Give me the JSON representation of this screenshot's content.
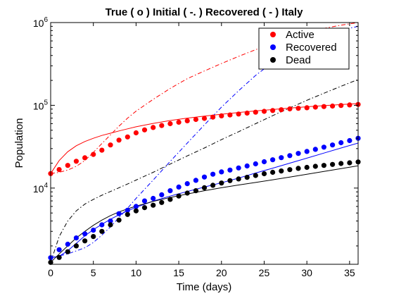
{
  "chart_data": {
    "type": "line",
    "title": "True ( o ) Initial ( -. ) Recovered ( - ) Italy",
    "xlabel": "Time (days)",
    "ylabel": "Population",
    "xlim": [
      0,
      36
    ],
    "ylim": [
      1200,
      1000000
    ],
    "yscale": "log",
    "x_ticks": [
      0,
      5,
      10,
      15,
      20,
      25,
      30,
      35
    ],
    "y_ticks": [
      {
        "value": 10000,
        "base": "10",
        "exponent": "4"
      },
      {
        "value": 100000,
        "base": "10",
        "exponent": "5"
      },
      {
        "value": 1000000,
        "base": "10",
        "exponent": "6"
      }
    ],
    "legend_position": "top-right",
    "grid": false,
    "legend": [
      {
        "label": "Active",
        "color": "#ff0000"
      },
      {
        "label": "Recovered",
        "color": "#0000ff"
      },
      {
        "label": "Dead",
        "color": "#000000"
      }
    ],
    "series": [
      {
        "name": "Active",
        "color": "#ff0000",
        "true_points": {
          "x": [
            0,
            1,
            2,
            3,
            4,
            5,
            6,
            7,
            8,
            9,
            10,
            11,
            12,
            13,
            14,
            15,
            16,
            17,
            18,
            19,
            20,
            21,
            22,
            23,
            24,
            25,
            26,
            27,
            28,
            29,
            30,
            31,
            32,
            33,
            34,
            35,
            36
          ],
          "y": [
            14955,
            16750,
            18800,
            21100,
            23200,
            25500,
            28700,
            33200,
            38000,
            41500,
            46500,
            50500,
            54000,
            57000,
            60000,
            62500,
            65000,
            67500,
            69500,
            72000,
            74500,
            76500,
            78500,
            80500,
            82500,
            84500,
            86500,
            88500,
            90500,
            92000,
            93500,
            95000,
            96500,
            98000,
            99500,
            101000,
            102500
          ]
        },
        "initial_fit": {
          "x": [
            0,
            1,
            2,
            3,
            4,
            5,
            6,
            7,
            8,
            9,
            10,
            12,
            14,
            16,
            18,
            20,
            22,
            24,
            26,
            28,
            30,
            32,
            34,
            36
          ],
          "y": [
            14955,
            15500,
            16500,
            18300,
            21500,
            27000,
            34500,
            44000,
            56000,
            70000,
            85000,
            118000,
            160000,
            210000,
            260000,
            320000,
            390000,
            470000,
            560000,
            660000,
            760000,
            850000,
            930000,
            1000000
          ]
        },
        "recovered_fit": {
          "x": [
            0,
            1,
            2,
            3,
            4,
            5,
            6,
            7,
            8,
            9,
            10,
            12,
            14,
            16,
            18,
            20,
            22,
            24,
            26,
            28,
            30,
            32,
            34,
            36
          ],
          "y": [
            14955,
            21500,
            27500,
            32500,
            36500,
            40000,
            43200,
            46000,
            49000,
            52000,
            55000,
            60500,
            65500,
            70000,
            74000,
            78000,
            82000,
            85500,
            89000,
            92500,
            96000,
            99000,
            102000,
            105000
          ]
        }
      },
      {
        "name": "Recovered",
        "color": "#0000ff",
        "true_points": {
          "x": [
            0,
            1,
            2,
            3,
            4,
            5,
            6,
            7,
            8,
            9,
            10,
            11,
            12,
            13,
            14,
            15,
            16,
            17,
            18,
            19,
            20,
            21,
            22,
            23,
            24,
            25,
            26,
            27,
            28,
            29,
            30,
            31,
            32,
            33,
            34,
            35,
            36
          ],
          "y": [
            1439,
            1800,
            2100,
            2500,
            2800,
            3100,
            3600,
            4000,
            4900,
            5400,
            6000,
            7000,
            7500,
            8300,
            9300,
            10300,
            11300,
            12400,
            13600,
            14700,
            15700,
            16500,
            17500,
            18500,
            19600,
            20800,
            22000,
            23300,
            24700,
            26200,
            27700,
            29400,
            31200,
            33200,
            35300,
            37500,
            40000
          ]
        },
        "initial_fit": {
          "x": [
            0,
            2,
            4,
            5,
            6,
            7,
            8,
            9,
            10,
            12,
            14,
            16,
            18,
            20,
            22,
            24,
            26,
            28,
            30,
            32,
            34,
            36
          ],
          "y": [
            1439,
            1600,
            1900,
            2200,
            2700,
            3400,
            4400,
            5700,
            7500,
            12500,
            21000,
            35000,
            58000,
            95000,
            150000,
            230000,
            330000,
            450000,
            570000,
            690000,
            810000,
            900000
          ]
        },
        "recovered_fit": {
          "x": [
            0,
            1,
            2,
            3,
            4,
            5,
            6,
            7,
            8,
            9,
            10,
            12,
            14,
            16,
            18,
            20,
            22,
            24,
            26,
            28,
            30,
            32,
            34,
            36
          ],
          "y": [
            1439,
            1500,
            1750,
            2150,
            2650,
            3150,
            3650,
            4200,
            4750,
            5300,
            5850,
            6950,
            8000,
            9100,
            10300,
            11600,
            13200,
            15200,
            17400,
            20000,
            23000,
            26500,
            30500,
            35000
          ]
        }
      },
      {
        "name": "Dead",
        "color": "#000000",
        "true_points": {
          "x": [
            0,
            1,
            2,
            3,
            4,
            5,
            6,
            7,
            8,
            9,
            10,
            11,
            12,
            13,
            14,
            15,
            16,
            17,
            18,
            19,
            20,
            21,
            22,
            23,
            24,
            25,
            26,
            27,
            28,
            29,
            30,
            31,
            32,
            33,
            34,
            35,
            36
          ],
          "y": [
            1266,
            1450,
            1700,
            2000,
            2300,
            2600,
            3000,
            3600,
            4100,
            4800,
            5300,
            5800,
            6200,
            6700,
            7300,
            8000,
            8700,
            9300,
            10100,
            10800,
            11500,
            12300,
            12900,
            13500,
            14200,
            14900,
            15500,
            16100,
            16700,
            17300,
            17800,
            18300,
            18800,
            19300,
            19800,
            20200,
            20700
          ]
        },
        "initial_fit": {
          "x": [
            0,
            1,
            2,
            3,
            4,
            5,
            6,
            7,
            8,
            9,
            10,
            12,
            14,
            16,
            18,
            20,
            22,
            24,
            26,
            28,
            30,
            32,
            34,
            36
          ],
          "y": [
            1266,
            2600,
            4000,
            5300,
            6400,
            7300,
            8200,
            9100,
            10100,
            11200,
            12500,
            15500,
            19500,
            24500,
            30500,
            38500,
            48000,
            60000,
            75000,
            93000,
            115000,
            140000,
            170000,
            205000
          ]
        },
        "recovered_fit": {
          "x": [
            0,
            1,
            2,
            3,
            4,
            5,
            6,
            7,
            8,
            9,
            10,
            12,
            14,
            16,
            18,
            20,
            22,
            24,
            26,
            28,
            30,
            32,
            34,
            36
          ],
          "y": [
            1266,
            1600,
            2000,
            2500,
            3000,
            3550,
            4100,
            4650,
            5150,
            5600,
            6050,
            6900,
            7700,
            8500,
            9300,
            10100,
            10900,
            11700,
            12600,
            13600,
            14700,
            15900,
            17200,
            18600
          ]
        }
      }
    ]
  }
}
